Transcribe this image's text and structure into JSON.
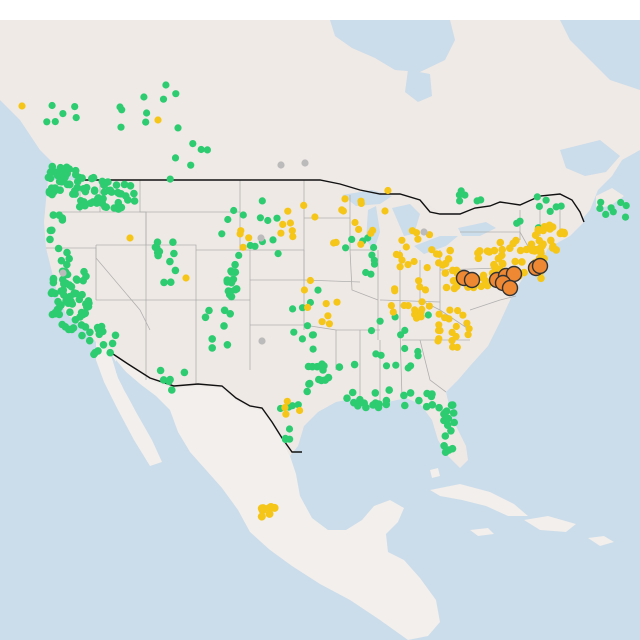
{
  "map": {
    "style": "light basemap with US state boundaries",
    "colors": {
      "background": "#ffffff",
      "water": "#cbdcea",
      "land": "#efeae6",
      "land_alt": "#f2efec",
      "us_land": "#efe9e5",
      "state_border": "#b0b0b0",
      "country_border": "#111111",
      "marker_green": "#2ecc71",
      "marker_yellow": "#f5c518",
      "marker_grey": "#bbbbbb",
      "marker_orange": "#ee8833",
      "marker_orange_stroke": "#333333"
    },
    "marker_categories": [
      {
        "id": "green",
        "color": "#2ecc71"
      },
      {
        "id": "yellow",
        "color": "#f5c518"
      },
      {
        "id": "grey",
        "color": "#bbbbbb"
      },
      {
        "id": "orange",
        "color": "#ee8833"
      }
    ]
  }
}
